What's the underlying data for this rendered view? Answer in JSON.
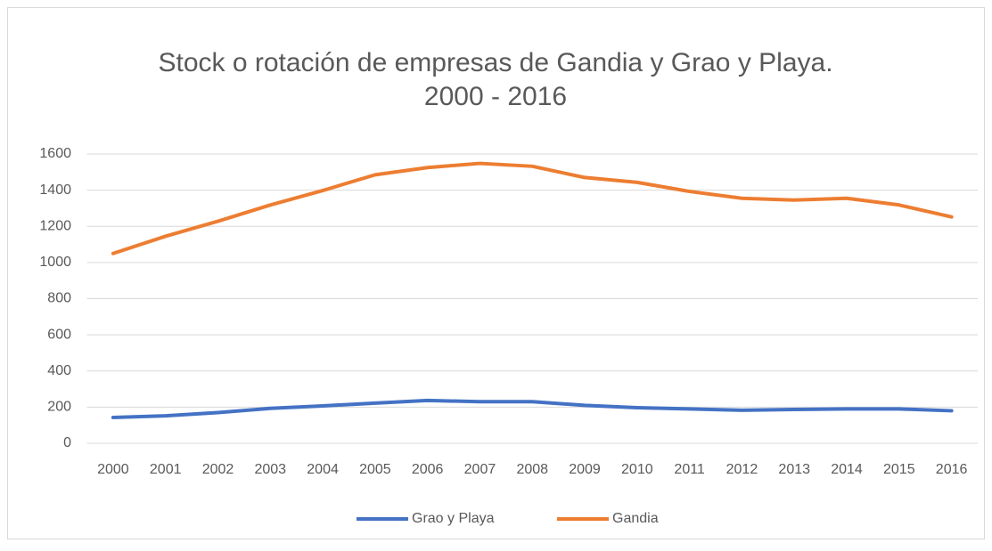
{
  "chart_data": {
    "type": "line",
    "title": [
      "Stock o rotación de empresas de Gandia y Grao y Playa.",
      "2000 - 2016"
    ],
    "categories": [
      "2000",
      "2001",
      "2002",
      "2003",
      "2004",
      "2005",
      "2006",
      "2007",
      "2008",
      "2009",
      "2010",
      "2011",
      "2012",
      "2013",
      "2014",
      "2015",
      "2016"
    ],
    "series": [
      {
        "name": "Grao y Playa",
        "color": "#4472c4",
        "values": [
          143,
          152,
          170,
          193,
          207,
          222,
          237,
          230,
          230,
          210,
          197,
          190,
          183,
          187,
          190,
          190,
          180
        ]
      },
      {
        "name": "Gandia",
        "color": "#ed7d31",
        "values": [
          1050,
          1145,
          1228,
          1318,
          1398,
          1485,
          1525,
          1548,
          1532,
          1470,
          1443,
          1393,
          1355,
          1345,
          1355,
          1318,
          1252
        ]
      }
    ],
    "ylim": [
      0,
      1600
    ],
    "yticks": [
      0,
      200,
      400,
      600,
      800,
      1000,
      1200,
      1400,
      1600
    ],
    "grid": true,
    "legend": "bottom"
  }
}
